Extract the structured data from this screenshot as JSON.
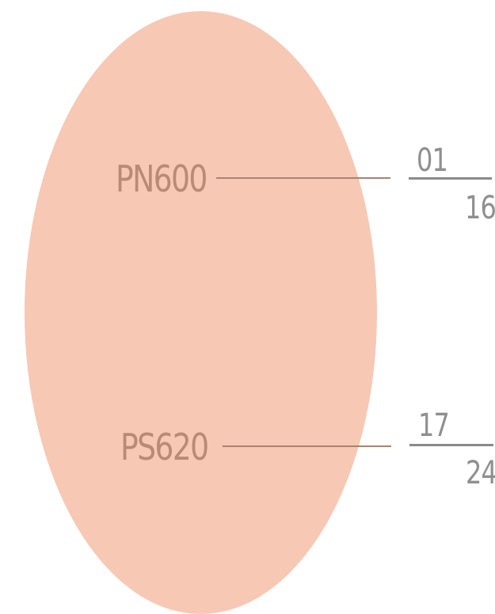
{
  "colors": {
    "ellipse_fill": "#f7c8b4",
    "code_text": "#b88b76",
    "leader_line": "#a88472",
    "range_text": "#8f8f8f",
    "range_rule": "#8a8a8a"
  },
  "items": [
    {
      "code": "PN600",
      "range_start": "01",
      "range_end": "16"
    },
    {
      "code": "PS620",
      "range_start": "17",
      "range_end": "24"
    }
  ]
}
